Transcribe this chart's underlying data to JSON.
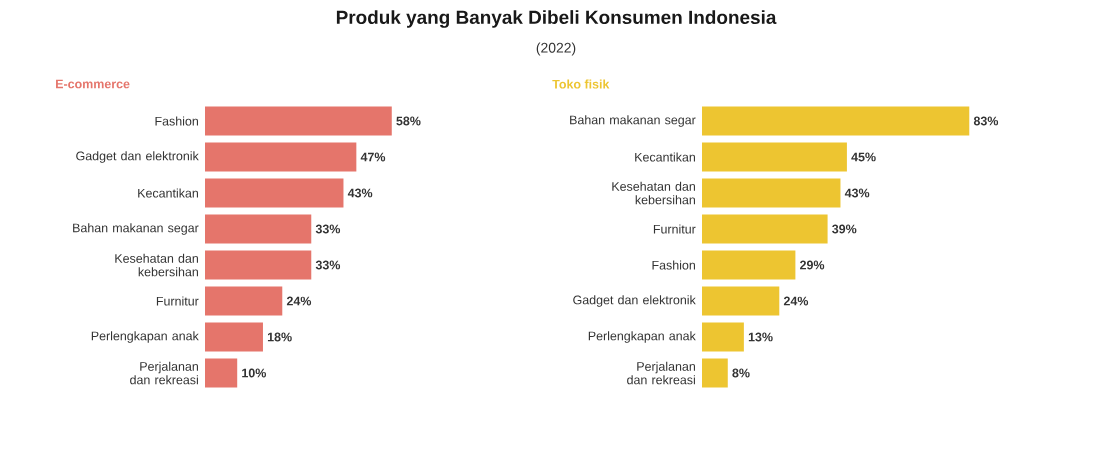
{
  "chart_data": [
    {
      "type": "other",
      "title": "Produk yang Banyak Dibeli Konsumen Indonesia",
      "subtitle": "(2022)"
    },
    {
      "type": "bar",
      "orientation": "horizontal",
      "title": "E-commerce",
      "color": "#e5756b",
      "tick_labels": "y",
      "categories": [
        "Fashion",
        "Gadget dan elektronik",
        "Kecantikan",
        "Bahan makanan segar",
        "Kesehatan dan kebersihan",
        "Furnitur",
        "Perlengkapan anak",
        "Perjalanan dan rekreasi"
      ],
      "values": [
        58,
        47,
        43,
        33,
        33,
        24,
        18,
        10
      ],
      "value_labels": [
        "58%",
        "47%",
        "43%",
        "33%",
        "33%",
        "24%",
        "18%",
        "10%"
      ]
    },
    {
      "type": "bar",
      "orientation": "horizontal",
      "title": "Toko fisik",
      "color": "#edc531",
      "tick_labels": "y",
      "categories": [
        "Bahan makanan segar",
        "Kecantikan",
        "Kesehatan dan kebersihan",
        "Furnitur",
        "Fashion",
        "Gadget dan elektronik",
        "Perlengkapan anak",
        "Perjalanan dan rekreasi"
      ],
      "values": [
        83,
        45,
        43,
        39,
        29,
        24,
        13,
        8
      ],
      "value_labels": [
        "83%",
        "45%",
        "43%",
        "39%",
        "29%",
        "24%",
        "13%",
        "8%"
      ]
    }
  ]
}
